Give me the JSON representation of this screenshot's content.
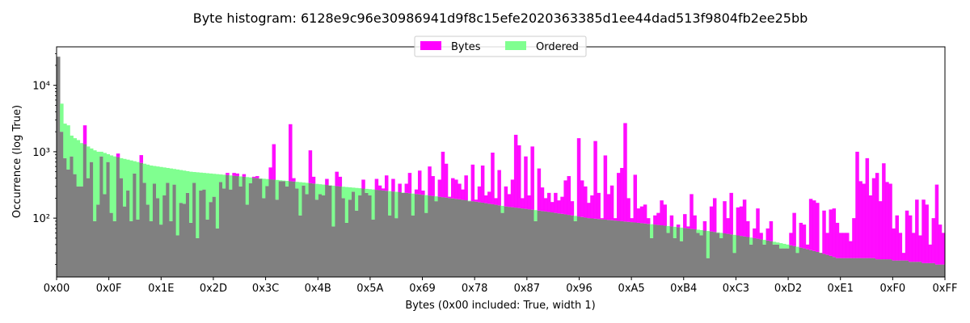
{
  "chart_data": {
    "type": "bar",
    "title": "Byte histogram: 6128e9c96e30986941d9f8c15efe2020363385d1ee44dad513f9804fb2ee25bb",
    "xlabel": "Bytes (0x00 included: True, width 1)",
    "ylabel": "Occurrence (log True)",
    "y_scale": "log",
    "ylim": [
      13,
      38000
    ],
    "xlim": [
      0,
      255
    ],
    "grid": false,
    "legend_position": "top-center",
    "x_ticks": [
      "0x00",
      "0x0F",
      "0x1E",
      "0x2D",
      "0x3C",
      "0x4B",
      "0x5A",
      "0x69",
      "0x78",
      "0x87",
      "0x96",
      "0xA5",
      "0xB4",
      "0xC3",
      "0xD2",
      "0xE1",
      "0xF0",
      "0xFF"
    ],
    "y_ticks": [
      {
        "value": 100,
        "label": "10²"
      },
      {
        "value": 1000,
        "label": "10³"
      },
      {
        "value": 10000,
        "label": "10⁴"
      }
    ],
    "overlap_color": "#808080",
    "series": [
      {
        "name": "Bytes",
        "color": "#ff00ff",
        "opacity": 0.95,
        "values": [
          27000,
          2000,
          800,
          540,
          850,
          460,
          300,
          300,
          2500,
          400,
          700,
          90,
          160,
          850,
          230,
          700,
          120,
          90,
          940,
          400,
          150,
          260,
          90,
          470,
          95,
          890,
          340,
          160,
          90,
          330,
          200,
          80,
          220,
          340,
          90,
          320,
          55,
          170,
          165,
          240,
          85,
          340,
          50,
          260,
          270,
          95,
          175,
          210,
          70,
          350,
          280,
          480,
          270,
          480,
          470,
          300,
          460,
          160,
          335,
          420,
          430,
          390,
          200,
          305,
          580,
          1300,
          190,
          360,
          360,
          300,
          2600,
          400,
          280,
          110,
          310,
          230,
          1050,
          420,
          190,
          230,
          220,
          390,
          310,
          75,
          500,
          420,
          200,
          85,
          190,
          250,
          130,
          220,
          380,
          240,
          220,
          95,
          390,
          310,
          280,
          440,
          110,
          390,
          100,
          330,
          240,
          330,
          480,
          110,
          270,
          520,
          260,
          120,
          600,
          430,
          180,
          380,
          1000,
          660,
          210,
          400,
          380,
          330,
          270,
          440,
          180,
          640,
          190,
          300,
          620,
          220,
          250,
          970,
          200,
          530,
          120,
          300,
          230,
          380,
          1800,
          1250,
          200,
          850,
          220,
          1200,
          90,
          560,
          290,
          200,
          240,
          175,
          240,
          185,
          210,
          370,
          430,
          180,
          90,
          1600,
          370,
          300,
          170,
          220,
          1450,
          240,
          100,
          880,
          230,
          310,
          100,
          480,
          570,
          2700,
          200,
          100,
          450,
          140,
          150,
          160,
          100,
          50,
          110,
          120,
          185,
          160,
          60,
          110,
          50,
          80,
          45,
          115,
          75,
          230,
          110,
          60,
          55,
          90,
          25,
          150,
          200,
          60,
          50,
          180,
          100,
          240,
          30,
          145,
          150,
          190,
          90,
          40,
          70,
          140,
          60,
          40,
          70,
          90,
          40,
          40,
          35,
          35,
          35,
          60,
          120,
          30,
          85,
          80,
          40,
          195,
          185,
          170,
          30,
          130,
          60,
          135,
          140,
          85,
          60,
          60,
          60,
          45,
          100,
          1000,
          360,
          330,
          800,
          220,
          400,
          480,
          180,
          670,
          350,
          330,
          70,
          110,
          60,
          30,
          130,
          110,
          60,
          190,
          55,
          190,
          160,
          40,
          100,
          320,
          80,
          60
        ]
      },
      {
        "name": "Ordered",
        "color": "#80ff90",
        "opacity": 1,
        "values": [
          27000,
          5300,
          2650,
          2500,
          1750,
          1600,
          1500,
          1350,
          1300,
          1200,
          1120,
          1050,
          1000,
          1000,
          960,
          920,
          880,
          850,
          830,
          800,
          780,
          760,
          740,
          720,
          700,
          680,
          660,
          640,
          620,
          610,
          600,
          590,
          580,
          570,
          560,
          550,
          540,
          530,
          520,
          510,
          500,
          495,
          490,
          485,
          480,
          475,
          470,
          465,
          460,
          455,
          450,
          445,
          440,
          435,
          430,
          425,
          420,
          415,
          410,
          405,
          400,
          396,
          392,
          388,
          384,
          380,
          376,
          372,
          368,
          364,
          360,
          356,
          352,
          348,
          344,
          340,
          336,
          332,
          328,
          324,
          320,
          316,
          312,
          308,
          304,
          300,
          297,
          294,
          291,
          288,
          285,
          282,
          279,
          276,
          273,
          270,
          267,
          264,
          261,
          258,
          255,
          252,
          249,
          246,
          243,
          240,
          237,
          234,
          231,
          228,
          225,
          222,
          219,
          216,
          213,
          210,
          207,
          204,
          201,
          198,
          195,
          192,
          189,
          186,
          183,
          180,
          177,
          174,
          171,
          168,
          165,
          162,
          159,
          156,
          153,
          150,
          148,
          146,
          144,
          142,
          140,
          138,
          136,
          134,
          132,
          130,
          128,
          126,
          124,
          122,
          120,
          118,
          116,
          114,
          112,
          110,
          108,
          106,
          104,
          102,
          100,
          99,
          98,
          97,
          96,
          95,
          94,
          93,
          92,
          91,
          90,
          89,
          88,
          87,
          86,
          85,
          84,
          83,
          82,
          81,
          80,
          79,
          78,
          77,
          76,
          75,
          74,
          73,
          72,
          71,
          70,
          69,
          68,
          67,
          66,
          65,
          64,
          63,
          62,
          61,
          60,
          59,
          58,
          57,
          56,
          55,
          54,
          53,
          52,
          51,
          50,
          49,
          48,
          47,
          46,
          45,
          44,
          43,
          42,
          41,
          40,
          39,
          38,
          37,
          36,
          35,
          34,
          33,
          32,
          31,
          30,
          29,
          28,
          27,
          26,
          25,
          25,
          25,
          25,
          25,
          25,
          25,
          25,
          25,
          25,
          25,
          25,
          24,
          24,
          24,
          24,
          24,
          23,
          23,
          23,
          23,
          23,
          22,
          22,
          22,
          22,
          21,
          21,
          21,
          21,
          20,
          20,
          20,
          19
        ]
      }
    ]
  }
}
